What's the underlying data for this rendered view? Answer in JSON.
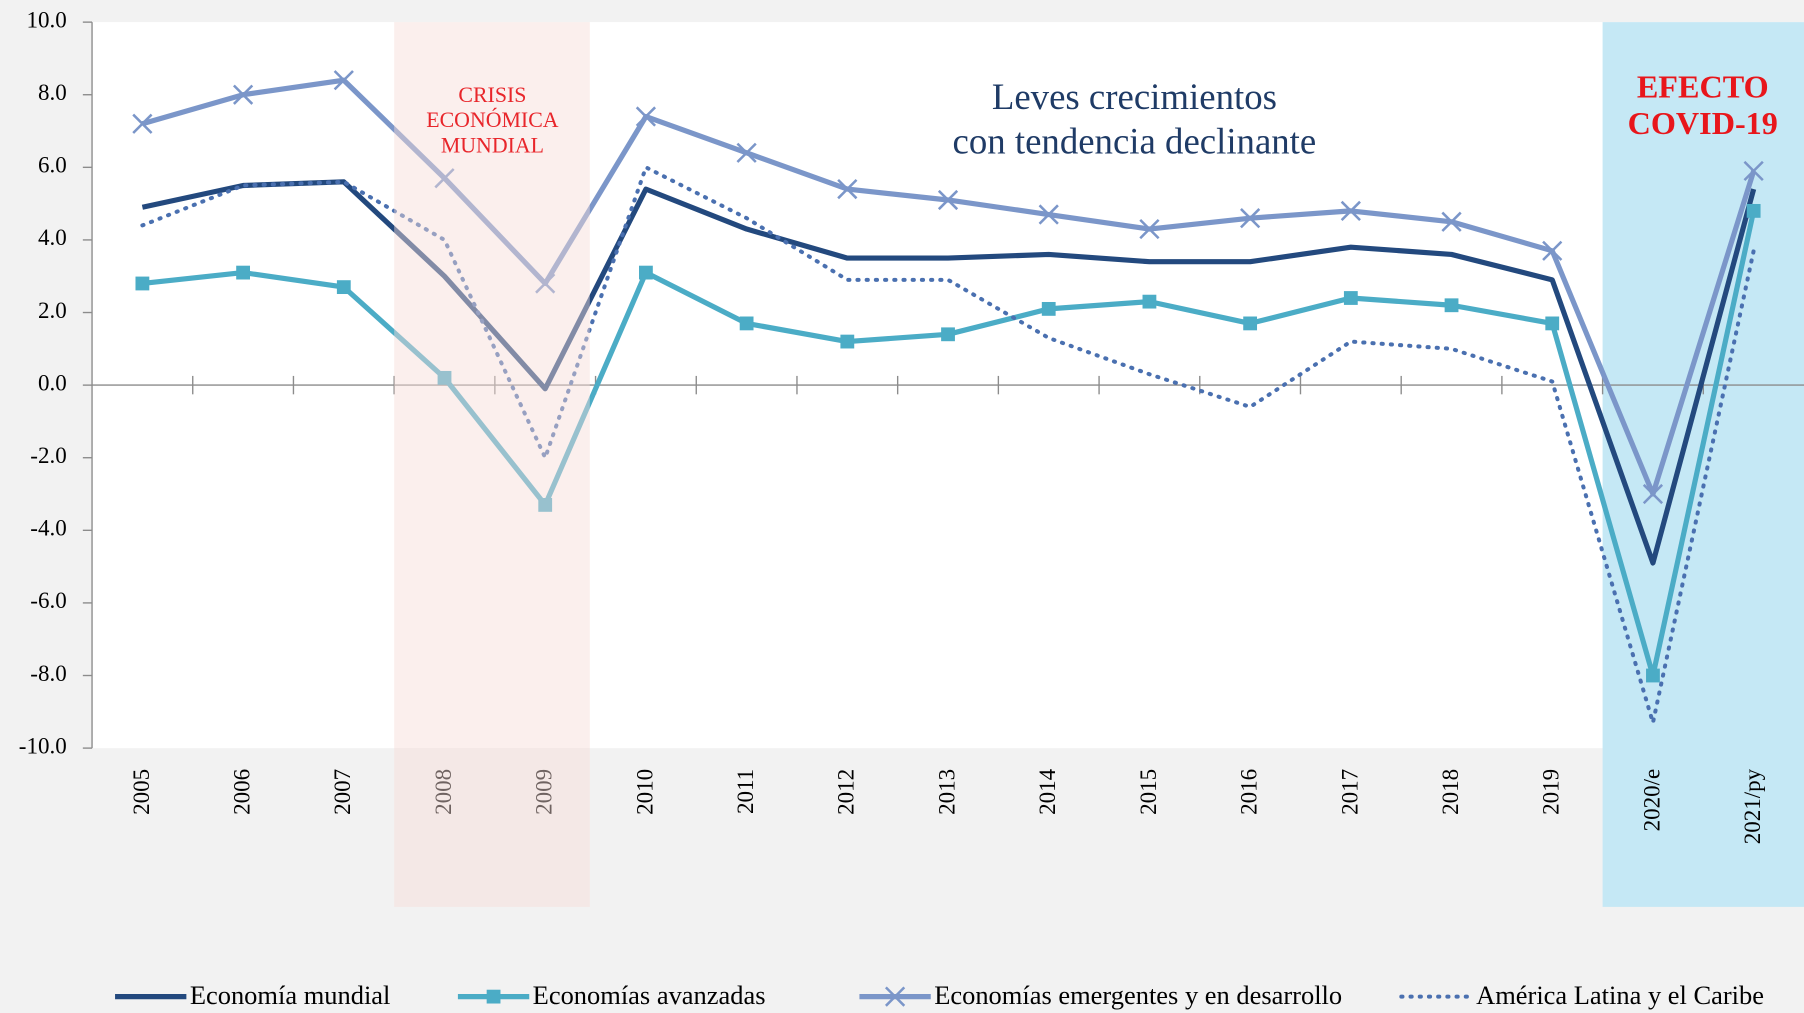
{
  "chart_data": {
    "type": "line",
    "annotations": [
      {
        "lines": [
          "CRISIS",
          "ECONÓMICA",
          "MUNDIAL"
        ],
        "color": "#e8262b"
      },
      {
        "lines": [
          "Leves crecimientos",
          "con tendencia declinante"
        ],
        "color": "#1f3b66"
      },
      {
        "lines": [
          "EFECTO",
          "COVID-19"
        ],
        "color": "#e8161b"
      }
    ],
    "categories": [
      "2005",
      "2006",
      "2007",
      "2008",
      "2009",
      "2010",
      "2011",
      "2012",
      "2013",
      "2014",
      "2015",
      "2016",
      "2017",
      "2018",
      "2019",
      "2020/e",
      "2021/py"
    ],
    "series": [
      {
        "name": "Economía mundial",
        "color": "#23497e",
        "marker": "none",
        "dash": "solid",
        "values": [
          4.9,
          5.5,
          5.6,
          3.0,
          -0.1,
          5.4,
          4.3,
          3.5,
          3.5,
          3.6,
          3.4,
          3.4,
          3.8,
          3.6,
          2.9,
          -4.9,
          5.4
        ]
      },
      {
        "name": "Economías avanzadas",
        "color": "#4bacc6",
        "marker": "square",
        "dash": "solid",
        "values": [
          2.8,
          3.1,
          2.7,
          0.2,
          -3.3,
          3.1,
          1.7,
          1.2,
          1.4,
          2.1,
          2.3,
          1.7,
          2.4,
          2.2,
          1.7,
          -8.0,
          4.8
        ]
      },
      {
        "name": "Economías emergentes y en desarrollo",
        "color": "#7b96c9",
        "marker": "x",
        "dash": "solid",
        "values": [
          7.2,
          8.0,
          8.4,
          5.7,
          2.8,
          7.4,
          6.4,
          5.4,
          5.1,
          4.7,
          4.3,
          4.6,
          4.8,
          4.5,
          3.7,
          -3.0,
          5.9
        ]
      },
      {
        "name": "América Latina y el Caribe",
        "color": "#4a70b0",
        "marker": "none",
        "dash": "dotted",
        "values": [
          4.4,
          5.5,
          5.6,
          4.0,
          -2.0,
          6.0,
          4.6,
          2.9,
          2.9,
          1.3,
          0.3,
          -0.6,
          1.2,
          1.0,
          0.1,
          -9.3,
          3.7
        ]
      }
    ],
    "ylim": [
      -10,
      10
    ],
    "yticks": [
      {
        "value": -10,
        "label": "-10.0"
      },
      {
        "value": -8,
        "label": "-8.0"
      },
      {
        "value": -6,
        "label": "-6.0"
      },
      {
        "value": -4,
        "label": "-4.0"
      },
      {
        "value": -2,
        "label": "-2.0"
      },
      {
        "value": 0,
        "label": "0.0"
      },
      {
        "value": 2,
        "label": "2.0"
      },
      {
        "value": 4,
        "label": "4.0"
      },
      {
        "value": 6,
        "label": "6.0"
      },
      {
        "value": 8,
        "label": "8.0"
      },
      {
        "value": 10,
        "label": "10.0"
      }
    ],
    "grid": false,
    "legend": "bottom"
  }
}
